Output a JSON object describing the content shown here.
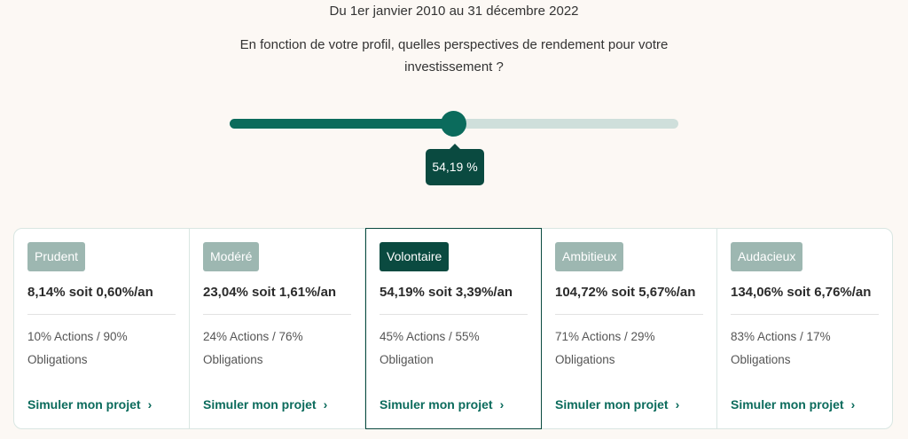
{
  "period": "Du 1er janvier 2010 au 31 décembre 2022",
  "question": "En fonction de votre profil, quelles perspectives de rendement pour votre investissement ?",
  "slider": {
    "value_label": "54,19 %",
    "fill_fraction": 0.5
  },
  "colors": {
    "accent": "#0b6b5c",
    "dark": "#0a4a40",
    "badge_inactive": "#9db7b1",
    "track": "#cfdfdb",
    "background": "#fcf8f4"
  },
  "profiles": [
    {
      "name": "Prudent",
      "performance": "8,14% soit 0,60%/an",
      "allocation": "10% Actions / 90% Obligations",
      "cta": "Simuler mon projet",
      "selected": false
    },
    {
      "name": "Modéré",
      "performance": "23,04%  soit 1,61%/an",
      "allocation": "24% Actions / 76% Obligations",
      "cta": "Simuler mon projet",
      "selected": false
    },
    {
      "name": "Volontaire",
      "performance": "54,19% soit 3,39%/an",
      "allocation": "45% Actions / 55% Obligation",
      "cta": "Simuler mon projet",
      "selected": true
    },
    {
      "name": "Ambitieux",
      "performance": "104,72% soit 5,67%/an",
      "allocation": "71% Actions / 29% Obligations",
      "cta": "Simuler mon projet",
      "selected": false
    },
    {
      "name": "Audacieux",
      "performance": "134,06%  soit 6,76%/an",
      "allocation": "83% Actions / 17% Obligations",
      "cta": "Simuler mon projet",
      "selected": false
    }
  ]
}
